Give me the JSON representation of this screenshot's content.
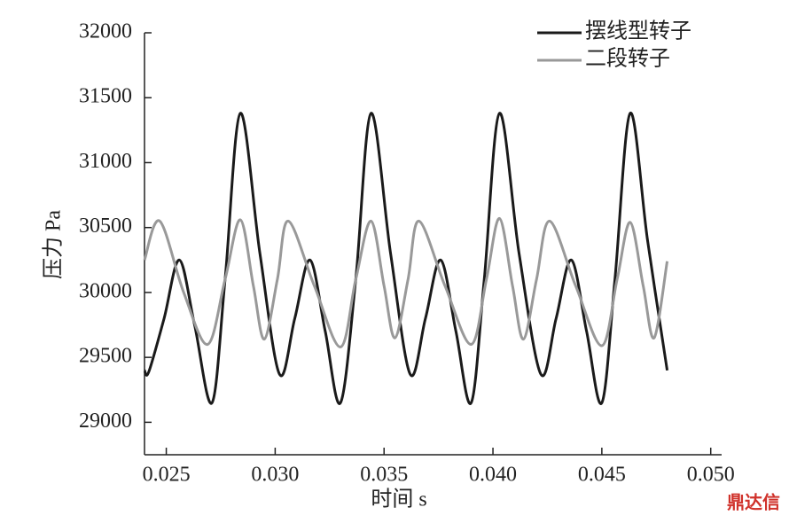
{
  "chart_data": {
    "type": "line",
    "x_label": "时间 s",
    "y_label": "压力 Pa",
    "watermark": "鼎达信",
    "xlim": [
      0.024,
      0.0505
    ],
    "ylim": [
      28750,
      32000
    ],
    "xticks": [
      0.025,
      {
        "value": 0.03,
        "label": "0.030"
      },
      0.035,
      {
        "value": 0.04,
        "label": "0.040"
      },
      0.045,
      {
        "value": 0.05,
        "label": "0.050"
      }
    ],
    "yticks": [
      29000,
      29500,
      30000,
      30500,
      31000,
      31500,
      32000
    ],
    "grid": false,
    "legend": "upper right",
    "series": [
      {
        "name": "摆线型转子",
        "color": "#1a1a1a",
        "x": [
          0.024,
          0.0242,
          0.0249,
          0.0256,
          0.0263,
          0.0271,
          0.0277,
          0.0284,
          0.0293,
          0.0302,
          0.0309,
          0.0316,
          0.0323,
          0.033,
          0.0337,
          0.0344,
          0.0353,
          0.0362,
          0.0369,
          0.0376,
          0.0383,
          0.039,
          0.0396,
          0.0403,
          0.0412,
          0.0422,
          0.0429,
          0.0436,
          0.0443,
          0.045,
          0.0456,
          0.0463,
          0.0471,
          0.048
        ],
        "values": [
          29400,
          29390,
          29800,
          30250,
          29750,
          29150,
          30100,
          31380,
          30300,
          29370,
          29800,
          30250,
          29700,
          29150,
          30100,
          31380,
          30300,
          29370,
          29800,
          30250,
          29700,
          29150,
          30100,
          31380,
          30300,
          29370,
          29800,
          30250,
          29700,
          29150,
          30100,
          31380,
          30400,
          29400
        ]
      },
      {
        "name": "二段转子",
        "color": "#999999",
        "x": [
          0.024,
          0.0247,
          0.0258,
          0.0269,
          0.0277,
          0.0284,
          0.029,
          0.0295,
          0.0301,
          0.0306,
          0.0318,
          0.033,
          0.0337,
          0.0344,
          0.035,
          0.0355,
          0.0361,
          0.0366,
          0.0378,
          0.039,
          0.0397,
          0.0403,
          0.0409,
          0.0414,
          0.042,
          0.0426,
          0.0438,
          0.045,
          0.0457,
          0.0463,
          0.0469,
          0.0474,
          0.048
        ],
        "values": [
          30250,
          30550,
          30000,
          29600,
          30100,
          30560,
          30050,
          29640,
          30100,
          30550,
          30050,
          29580,
          30100,
          30550,
          30050,
          29650,
          30100,
          30550,
          30050,
          29600,
          30100,
          30570,
          30050,
          29640,
          30100,
          30550,
          30050,
          29590,
          30100,
          30540,
          30050,
          29650,
          30240
        ]
      }
    ]
  }
}
